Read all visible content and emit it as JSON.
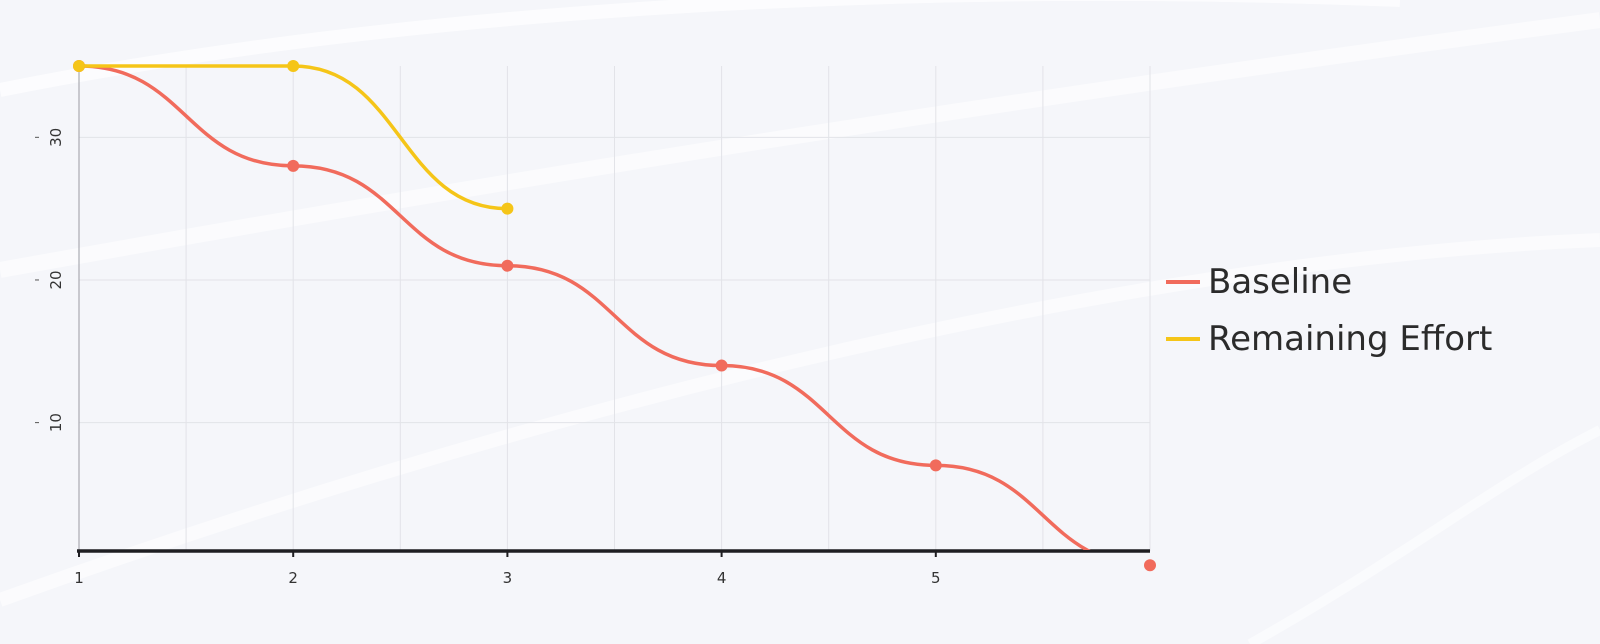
{
  "chart_data": {
    "type": "line",
    "title": "",
    "xlabel": "",
    "ylabel": "",
    "x_ticks": [
      1,
      2,
      3,
      4,
      5
    ],
    "y_ticks": [
      10,
      20,
      30
    ],
    "xlim": [
      1,
      6
    ],
    "ylim": [
      1,
      35
    ],
    "grid": true,
    "legend_position": "right",
    "curve": "smooth",
    "series": [
      {
        "name": "Baseline",
        "color": "#f16b5c",
        "x": [
          1,
          2,
          3,
          4,
          5,
          6
        ],
        "y": [
          35,
          28,
          21,
          14,
          7,
          0
        ]
      },
      {
        "name": "Remaining Effort",
        "color": "#f5c518",
        "x": [
          1,
          2,
          3
        ],
        "y": [
          35,
          35,
          25
        ]
      }
    ]
  }
}
